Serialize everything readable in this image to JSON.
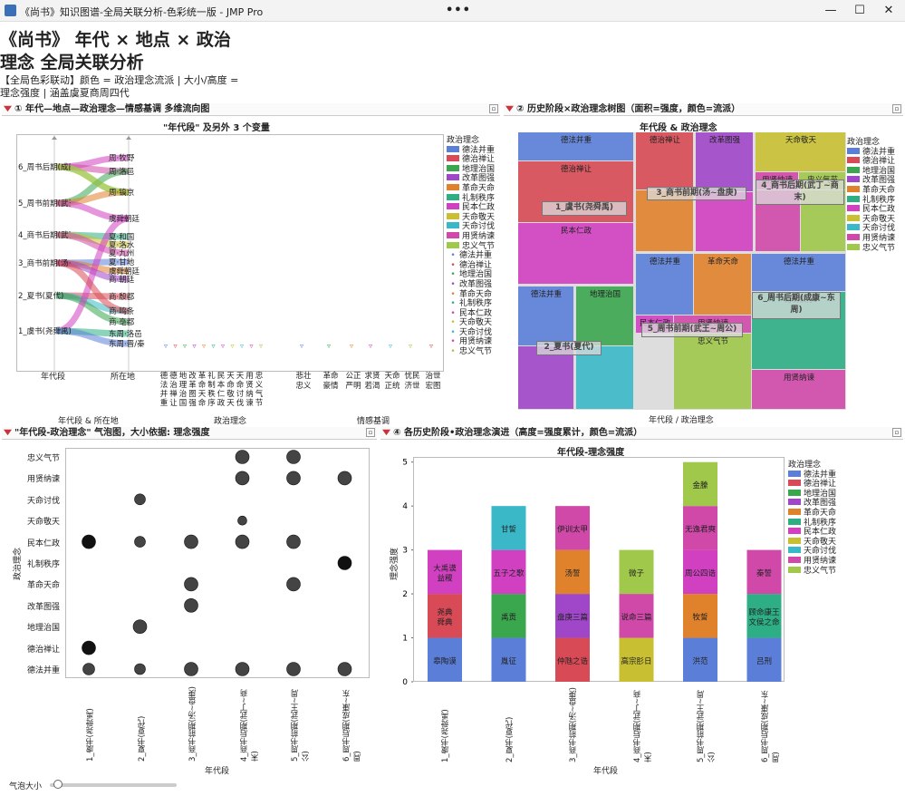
{
  "window": {
    "title": "《尚书》知识图谱-全局关联分析-色彩统一版 - JMP Pro",
    "more": "•••",
    "min": "—",
    "max": "☐",
    "close": "✕"
  },
  "header": {
    "title": "《尚书》 年代 × 地点 × 政治理念 全局关联分析",
    "subtitle": "【全局色彩联动】颜色 = 政治理念流派 | 大小/高度 = 理念强度 | 涵盖虞夏商周四代"
  },
  "colors": {
    "德法并重": "#5b7fd8",
    "德治禅让": "#d84a55",
    "地理治国": "#3aa64e",
    "改革图强": "#a046c8",
    "革命天命": "#e0822c",
    "礼制秩序": "#2eae84",
    "民本仁政": "#d040c0",
    "天命敬天": "#c8c032",
    "天命讨伐": "#3ab8c8",
    "用贤纳谏": "#d048a8",
    "忠义气节": "#a0c84a"
  },
  "legend": {
    "title": "政治理念",
    "items": [
      "德法并重",
      "德治禅让",
      "地理治国",
      "改革图强",
      "革命天命",
      "礼制秩序",
      "民本仁政",
      "天命敬天",
      "天命讨伐",
      "用贤纳谏",
      "忠义气节"
    ]
  },
  "panel1": {
    "header": "① 年代—地点—政治理念—情感基调 多维流向图",
    "title": "\"年代段\" 及另外 3 个变量",
    "eras": [
      "6_周书后期(成康...",
      "5_周书前期(武王...",
      "4_商书后期(武丁...",
      "3_商书前期(汤~...",
      "2_夏书(夏代)",
      "1_虞书(尧舜禹)"
    ],
    "places": [
      "周·牧野",
      "周·洛邑",
      "周·镐京",
      "虞舜朝廷",
      "夏·和国",
      "夏·洛水",
      "夏·九州",
      "夏·甘地",
      "虞舜朝廷",
      "商·朝廷",
      "商·殷都",
      "商·鸣条",
      "商·亳都",
      "东周·洛邑",
      "东周·晋/秦"
    ],
    "axis_era": "年代段",
    "axis_place": "所在地",
    "footer": "年代段 & 所在地",
    "ideas_label": "政治理念",
    "emotions_label": "情感基调",
    "ideas": [
      "德法并重",
      "德治禅让",
      "地理治国",
      "改革图强",
      "革命天命",
      "礼制秩序",
      "民本仁政",
      "天命敬天",
      "天命讨伐",
      "用贤纳谏",
      "忠义气节"
    ],
    "emotions": [
      "悲壮忠义",
      "革命豪情",
      "公正严明",
      "求贤若渴",
      "天命正统",
      "忧民济世",
      "治世宏图"
    ]
  },
  "panel2": {
    "header": "② 历史阶段×政治理念树图（面积=强度，颜色=流派）",
    "title": "年代段 & 政治理念",
    "xaxis": "年代段 / 政治理念",
    "cells": [
      {
        "l": "德法并重",
        "c": "德法并重"
      },
      {
        "l": "德治禅让",
        "c": "德治禅让"
      },
      {
        "l": "民本仁政",
        "c": "民本仁政"
      },
      {
        "l": "德法并重",
        "c": "德法并重"
      },
      {
        "l": "地理治国",
        "c": "地理治国"
      },
      {
        "l": "",
        "c": "天命讨伐"
      },
      {
        "l": "",
        "c": "改革图强"
      },
      {
        "l": "德治禅让",
        "c": "德治禅让"
      },
      {
        "l": "改革图强",
        "c": "改革图强"
      },
      {
        "l": "",
        "c": "革命天命"
      },
      {
        "l": "",
        "c": "民本仁政"
      },
      {
        "l": "天命敬天",
        "c": "天命敬天"
      },
      {
        "l": "用贤纳谏",
        "c": "用贤纳谏"
      },
      {
        "l": "忠义气节",
        "c": "忠义气节"
      },
      {
        "l": "",
        "c": "用贤纳谏"
      },
      {
        "l": "",
        "c": "忠义气节"
      },
      {
        "l": "德法并重",
        "c": "德法并重"
      },
      {
        "l": "革命天命",
        "c": "革命天命"
      },
      {
        "l": "民本仁政",
        "c": "民本仁政"
      },
      {
        "l": "用贤纳谏",
        "c": "用贤纳谏"
      },
      {
        "l": "忠义气节",
        "c": "忠义气节"
      },
      {
        "l": "德法并重",
        "c": "德法并重"
      },
      {
        "l": "礼制秩序",
        "c": "礼制秩序"
      },
      {
        "l": "用贤纳谏",
        "c": "用贤纳谏"
      }
    ],
    "groups": [
      "1_虞书(尧舜禹)",
      "2_夏书(夏代)",
      "3_商书前期(汤~盘庚)",
      "4_商书后期(武丁~商末)",
      "5_周书前期(武王~周公)",
      "6_周书后期(成康~东周)"
    ],
    "stub": "天命讨伐"
  },
  "panel3": {
    "header": "\"年代段-政治理念\" 气泡图，大小依据: 理念强度",
    "ylabel": "政治理念",
    "xlabel": "年代段",
    "slider_label": "气泡大小",
    "yticks": [
      "忠义气节",
      "用贤纳谏",
      "天命讨伐",
      "天命敬天",
      "民本仁政",
      "礼制秩序",
      "革命天命",
      "改革图强",
      "地理治国",
      "德治禅让",
      "德法并重"
    ],
    "xticks": [
      "1_虞书(尧舜禹)",
      "2_夏书(夏代)",
      "3_商书前期(汤~盘庚)",
      "4_商书后期(武丁~商末)",
      "5_周书前期(武王~周公)",
      "6_周书后期(成康~东周)"
    ],
    "bubbles": [
      [
        0,
        "德法并重"
      ],
      [
        0,
        "德治禅让"
      ],
      [
        0,
        "民本仁政"
      ],
      [
        1,
        "德法并重"
      ],
      [
        1,
        "地理治国"
      ],
      [
        1,
        "民本仁政"
      ],
      [
        1,
        "天命讨伐"
      ],
      [
        2,
        "德法并重"
      ],
      [
        2,
        "改革图强"
      ],
      [
        2,
        "革命天命"
      ],
      [
        2,
        "民本仁政"
      ],
      [
        3,
        "德法并重"
      ],
      [
        3,
        "民本仁政"
      ],
      [
        3,
        "天命敬天"
      ],
      [
        3,
        "用贤纳谏"
      ],
      [
        3,
        "忠义气节"
      ],
      [
        4,
        "德法并重"
      ],
      [
        4,
        "革命天命"
      ],
      [
        4,
        "民本仁政"
      ],
      [
        4,
        "用贤纳谏"
      ],
      [
        4,
        "忠义气节"
      ],
      [
        5,
        "德法并重"
      ],
      [
        5,
        "礼制秩序"
      ],
      [
        5,
        "用贤纳谏"
      ]
    ]
  },
  "panel4": {
    "header": "④ 各历史阶段•政治理念演进（高度=强度累计，颜色=流派）",
    "title": "年代段-理念强度"
  },
  "chart_data": {
    "type": "bar",
    "title": "年代段-理念强度",
    "xlabel": "年代段",
    "ylabel": "理念强度",
    "ylim": [
      0,
      5
    ],
    "yticks": [
      0,
      1,
      2,
      3,
      4,
      5
    ],
    "categories": [
      "1_虞书(尧舜禹)",
      "2_夏书(夏代)",
      "3_商书前期(汤~盘庚)",
      "4_商书后期(武丁~商末)",
      "5_周书前期(武王~周公)",
      "6_周书后期(成康~东周)"
    ],
    "stacks": [
      [
        {
          "s": "德法并重",
          "v": 1,
          "label": "皋陶谟"
        },
        {
          "s": "德治禅让",
          "v": 1,
          "label": "尧典\n舜典"
        },
        {
          "s": "民本仁政",
          "v": 1,
          "label": "大禹谟\n益稷"
        }
      ],
      [
        {
          "s": "德法并重",
          "v": 1,
          "label": "胤征"
        },
        {
          "s": "地理治国",
          "v": 1,
          "label": "禹贡"
        },
        {
          "s": "民本仁政",
          "v": 1,
          "label": "五子之歌"
        },
        {
          "s": "天命讨伐",
          "v": 1,
          "label": "甘誓"
        }
      ],
      [
        {
          "s": "德治禅让",
          "v": 1,
          "label": "仲虺之诰"
        },
        {
          "s": "改革图强",
          "v": 1,
          "label": "盘庚三篇"
        },
        {
          "s": "革命天命",
          "v": 1,
          "label": "汤誓"
        },
        {
          "s": "用贤纳谏",
          "v": 1,
          "label": "伊训太甲"
        }
      ],
      [
        {
          "s": "天命敬天",
          "v": 1,
          "label": "高宗肜日"
        },
        {
          "s": "用贤纳谏",
          "v": 1,
          "label": "说命三篇"
        },
        {
          "s": "忠义气节",
          "v": 1,
          "label": "微子"
        }
      ],
      [
        {
          "s": "德法并重",
          "v": 1,
          "label": "洪范"
        },
        {
          "s": "革命天命",
          "v": 1,
          "label": "牧誓"
        },
        {
          "s": "民本仁政",
          "v": 1,
          "label": "周公四诰"
        },
        {
          "s": "用贤纳谏",
          "v": 1,
          "label": "无逸君奭"
        },
        {
          "s": "忠义气节",
          "v": 1,
          "label": "金縢"
        }
      ],
      [
        {
          "s": "德法并重",
          "v": 1,
          "label": "吕刑"
        },
        {
          "s": "礼制秩序",
          "v": 1,
          "label": "顾命康王\n文侯之命"
        },
        {
          "s": "用贤纳谏",
          "v": 1,
          "label": "秦誓"
        }
      ]
    ]
  }
}
